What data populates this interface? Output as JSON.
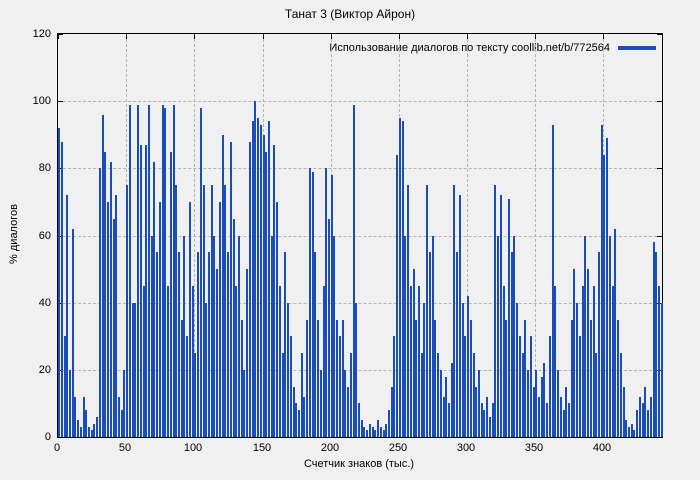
{
  "chart_data": {
    "type": "bar",
    "title": "Танат 3 (Виктор Айрон)",
    "legend_label": "Использование диалогов по тексту coollib.net/b/772564",
    "xlabel": "Счетчик знаков (тыс.)",
    "ylabel": "% диалогов",
    "xlim": [
      0,
      443
    ],
    "ylim": [
      0,
      120
    ],
    "xticks": [
      0,
      50,
      100,
      150,
      200,
      250,
      300,
      350,
      400
    ],
    "yticks": [
      0,
      20,
      40,
      60,
      80,
      100,
      120
    ],
    "grid": true,
    "legend_position": "top-right-inside",
    "bar_color": "#1b4db8",
    "x_start": 0,
    "x_step": 2,
    "values": [
      92,
      88,
      30,
      72,
      20,
      62,
      12,
      5,
      3,
      12,
      8,
      3,
      2,
      4,
      6,
      80,
      96,
      85,
      70,
      82,
      65,
      72,
      12,
      8,
      20,
      75,
      99,
      40,
      40,
      99,
      87,
      45,
      87,
      99,
      60,
      82,
      55,
      70,
      99,
      98,
      45,
      85,
      99,
      75,
      55,
      35,
      60,
      30,
      70,
      45,
      25,
      55,
      98,
      75,
      40,
      55,
      75,
      60,
      50,
      70,
      90,
      75,
      55,
      88,
      65,
      45,
      60,
      35,
      20,
      50,
      88,
      94,
      100,
      95,
      93,
      90,
      85,
      94,
      60,
      87,
      70,
      45,
      25,
      55,
      40,
      30,
      15,
      10,
      8,
      25,
      12,
      35,
      80,
      79,
      55,
      35,
      20,
      45,
      80,
      65,
      78,
      60,
      35,
      30,
      35,
      20,
      15,
      25,
      99,
      40,
      10,
      5,
      3,
      2,
      4,
      3,
      2,
      5,
      3,
      2,
      4,
      8,
      15,
      30,
      84,
      95,
      94,
      60,
      75,
      45,
      50,
      35,
      45,
      25,
      40,
      75,
      55,
      60,
      35,
      25,
      20,
      12,
      18,
      10,
      22,
      75,
      55,
      72,
      40,
      30,
      42,
      35,
      25,
      15,
      20,
      10,
      8,
      12,
      6,
      10,
      75,
      60,
      72,
      45,
      35,
      71,
      55,
      60,
      40,
      30,
      25,
      35,
      20,
      30,
      15,
      20,
      12,
      18,
      22,
      10,
      30,
      93,
      45,
      20,
      12,
      8,
      15,
      10,
      35,
      50,
      40,
      30,
      45,
      60,
      50,
      35,
      45,
      25,
      55,
      93,
      84,
      89,
      60,
      45,
      62,
      35,
      25,
      15,
      5,
      3,
      4,
      2,
      8,
      12,
      10,
      15,
      8,
      12,
      58,
      55,
      45,
      40
    ]
  }
}
